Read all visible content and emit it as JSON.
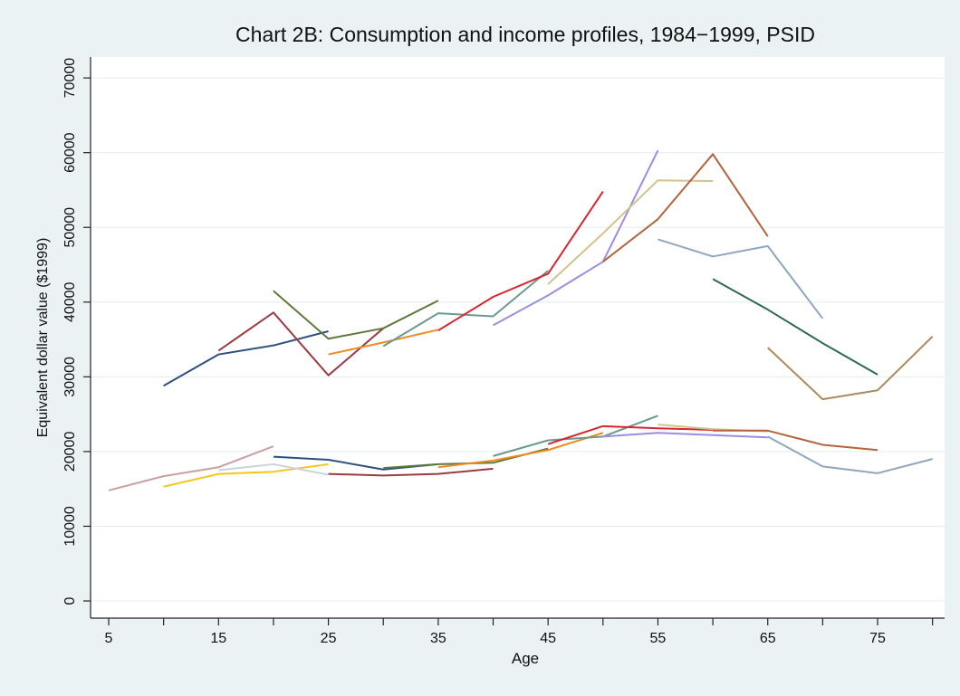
{
  "chart_data": {
    "type": "line",
    "title": "Chart 2B: Consumption and income profiles, 1984−1999, PSID",
    "xlabel": "Age",
    "ylabel": "Equivalent dollar value ($1999)",
    "xlim": [
      3.35,
      81.1
    ],
    "ylim": [
      -2300,
      72800
    ],
    "xticks": [
      5,
      15,
      25,
      35,
      45,
      55,
      65,
      75
    ],
    "xticks_minor": [
      10,
      20,
      30,
      40,
      50,
      60,
      70,
      80
    ],
    "yticks": [
      0,
      10000,
      20000,
      30000,
      40000,
      50000,
      60000,
      70000
    ],
    "grid": true,
    "series": [
      {
        "color": "#2f4f7f",
        "x": [
          10,
          15,
          20,
          25
        ],
        "values": [
          28800,
          33000,
          34200,
          36100
        ]
      },
      {
        "color": "#9b3b42",
        "x": [
          15,
          20,
          25,
          30
        ],
        "values": [
          33500,
          38600,
          30200,
          36500
        ]
      },
      {
        "color": "#5e7a3a",
        "x": [
          20,
          25,
          30,
          35
        ],
        "values": [
          41500,
          35100,
          36500,
          40200
        ]
      },
      {
        "color": "#f08a24",
        "x": [
          25,
          30,
          35
        ],
        "values": [
          33000,
          34600,
          36300
        ]
      },
      {
        "color": "#6b9a8c",
        "x": [
          30,
          35,
          40,
          45
        ],
        "values": [
          34100,
          38500,
          38100,
          44200
        ]
      },
      {
        "color": "#d7262f",
        "x": [
          35,
          40,
          45,
          50
        ],
        "values": [
          36200,
          40700,
          43800,
          54800
        ]
      },
      {
        "color": "#9b8ee0",
        "x": [
          40,
          45,
          50,
          55
        ],
        "values": [
          36900,
          40900,
          45400,
          60300
        ]
      },
      {
        "color": "#d2c38c",
        "x": [
          45,
          50,
          55,
          60
        ],
        "values": [
          42400,
          49200,
          56300,
          56200
        ]
      },
      {
        "color": "#b4643c",
        "x": [
          50,
          55,
          60,
          65
        ],
        "values": [
          45400,
          51100,
          59800,
          48800
        ]
      },
      {
        "color": "#8ea6c2",
        "x": [
          55,
          60,
          65,
          70
        ],
        "values": [
          48400,
          46100,
          47500,
          37800
        ]
      },
      {
        "color": "#2d6b4f",
        "x": [
          60,
          65,
          70,
          75
        ],
        "values": [
          43100,
          39000,
          34500,
          30300
        ]
      },
      {
        "color": "#a88c5c",
        "x": [
          65,
          70,
          75,
          80
        ],
        "values": [
          33900,
          27000,
          28200,
          35400
        ]
      },
      {
        "color": "#c8a0a0",
        "x": [
          5,
          10,
          15,
          20
        ],
        "values": [
          14800,
          16700,
          17900,
          20700
        ]
      },
      {
        "color": "#f5c518",
        "x": [
          10,
          15,
          20,
          25
        ],
        "values": [
          15300,
          17000,
          17300,
          18300
        ]
      },
      {
        "color": "#c8d4dc",
        "x": [
          15,
          20,
          25
        ],
        "values": [
          17500,
          18300,
          16900
        ]
      },
      {
        "color": "#2f4f7f",
        "x": [
          20,
          25,
          30,
          35
        ],
        "values": [
          19300,
          18900,
          17600,
          18300
        ]
      },
      {
        "color": "#9b3b42",
        "x": [
          25,
          30,
          35,
          40
        ],
        "values": [
          17000,
          16800,
          17000,
          17700
        ]
      },
      {
        "color": "#5e7a3a",
        "x": [
          30,
          35,
          40,
          45
        ],
        "values": [
          17800,
          18300,
          18500,
          20400
        ]
      },
      {
        "color": "#f08a24",
        "x": [
          35,
          40,
          45,
          50
        ],
        "values": [
          17900,
          18800,
          20200,
          22500
        ]
      },
      {
        "color": "#6b9a8c",
        "x": [
          40,
          45,
          50,
          55
        ],
        "values": [
          19400,
          21500,
          22000,
          24800
        ]
      },
      {
        "color": "#d7262f",
        "x": [
          45,
          50,
          55,
          60
        ],
        "values": [
          21000,
          23400,
          23100,
          22900
        ]
      },
      {
        "color": "#9b8ee0",
        "x": [
          50,
          55,
          60,
          65
        ],
        "values": [
          22000,
          22500,
          22200,
          21900
        ]
      },
      {
        "color": "#d2c38c",
        "x": [
          55,
          60,
          65
        ],
        "values": [
          23600,
          23000,
          22700
        ]
      },
      {
        "color": "#b4643c",
        "x": [
          60,
          65,
          70,
          75
        ],
        "values": [
          22800,
          22800,
          20900,
          20200
        ]
      },
      {
        "color": "#8ea6c2",
        "x": [
          65,
          70,
          75,
          80
        ],
        "values": [
          22000,
          18000,
          17100,
          19000
        ]
      }
    ]
  }
}
